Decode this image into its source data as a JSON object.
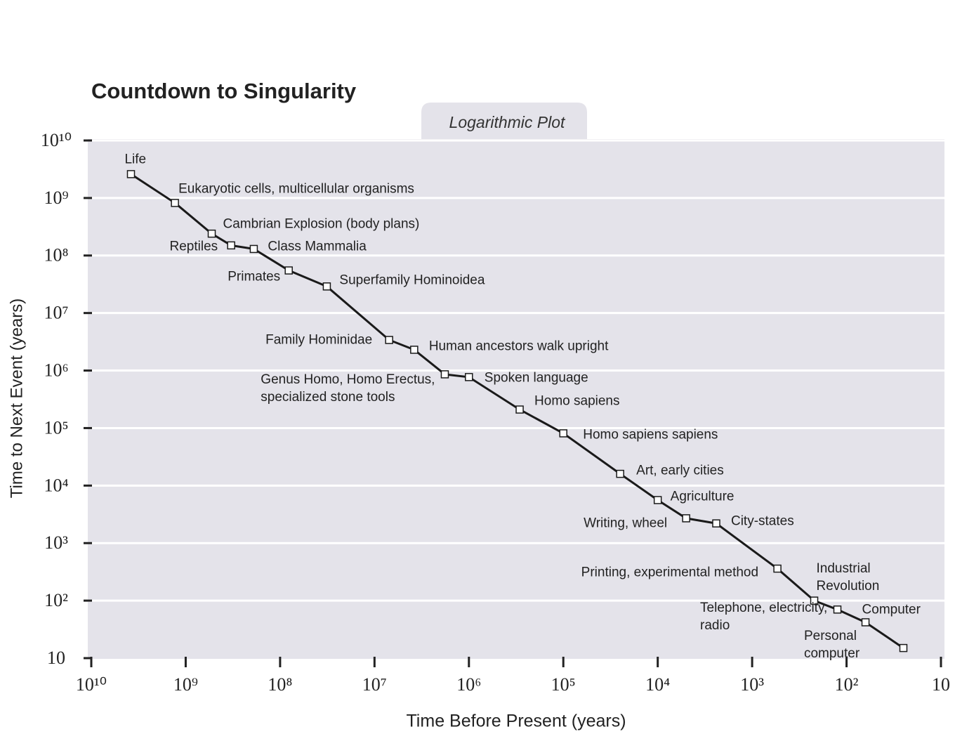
{
  "chart_data": {
    "type": "line",
    "title": "Countdown to Singularity",
    "subtitle": "Logarithmic Plot",
    "x_label": "Time Before Present (years)",
    "y_label": "Time to Next Event (years)",
    "xscale": "log",
    "yscale": "log",
    "grid": true,
    "color": "#1a1a1a",
    "categories": [
      "Life",
      "Eukaryotic cells, multicellular organisms",
      "Cambrian Explosion (body plans)",
      "Reptiles",
      "Class Mammalia",
      "Primates",
      "Superfamily Hominoidea",
      "Family Hominidae",
      "Human ancestors walk upright",
      "Genus Homo, Homo Erectus,\nspecialized stone tools",
      "Spoken language",
      "Homo sapiens",
      "Homo sapiens sapiens",
      "Art, early cities",
      "Agriculture",
      "Writing, wheel",
      "City-states",
      "Printing, experimental method",
      "Industrial\nRevolution",
      "Telephone,  electricity, radio",
      "Computer",
      "Personal computer"
    ],
    "x": [
      3800000000,
      1300000000,
      530000000,
      330000000,
      190000000,
      81000000,
      32000000,
      7000000,
      3800000,
      1800000,
      1000000,
      290000,
      100000,
      25000,
      10000,
      5000,
      2400,
      540,
      220,
      125,
      63,
      25
    ],
    "values": [
      2600000000,
      820000000,
      240000000,
      150000000,
      130000000,
      55000000,
      29000000,
      3400000,
      2300000,
      860000,
      770000,
      210000,
      81000,
      16000,
      5600,
      2700,
      2200,
      360,
      100,
      70,
      42,
      15
    ],
    "xlim": [
      10000000000,
      10
    ],
    "ylim": [
      10,
      10000000000
    ],
    "xticks": [
      {
        "value": 10000000000,
        "label": "10¹⁰"
      },
      {
        "value": 1000000000,
        "label": "10⁹"
      },
      {
        "value": 100000000,
        "label": "10⁸"
      },
      {
        "value": 10000000,
        "label": "10⁷"
      },
      {
        "value": 1000000,
        "label": "10⁶"
      },
      {
        "value": 100000,
        "label": "10⁵"
      },
      {
        "value": 10000,
        "label": "10⁴"
      },
      {
        "value": 1000,
        "label": "10³"
      },
      {
        "value": 100,
        "label": "10²"
      },
      10
    ],
    "yticks": [
      10,
      {
        "value": 100,
        "label": "10²"
      },
      {
        "value": 1000,
        "label": "10³"
      },
      {
        "value": 10000,
        "label": "10⁴"
      },
      {
        "value": 100000,
        "label": "10⁵"
      },
      {
        "value": 1000000,
        "label": "10⁶"
      },
      {
        "value": 10000000,
        "label": "10⁷"
      },
      {
        "value": 100000000,
        "label": "10⁸"
      },
      {
        "value": 1000000000,
        "label": "10⁹"
      },
      {
        "value": 10000000000,
        "label": "10¹⁰"
      }
    ]
  }
}
